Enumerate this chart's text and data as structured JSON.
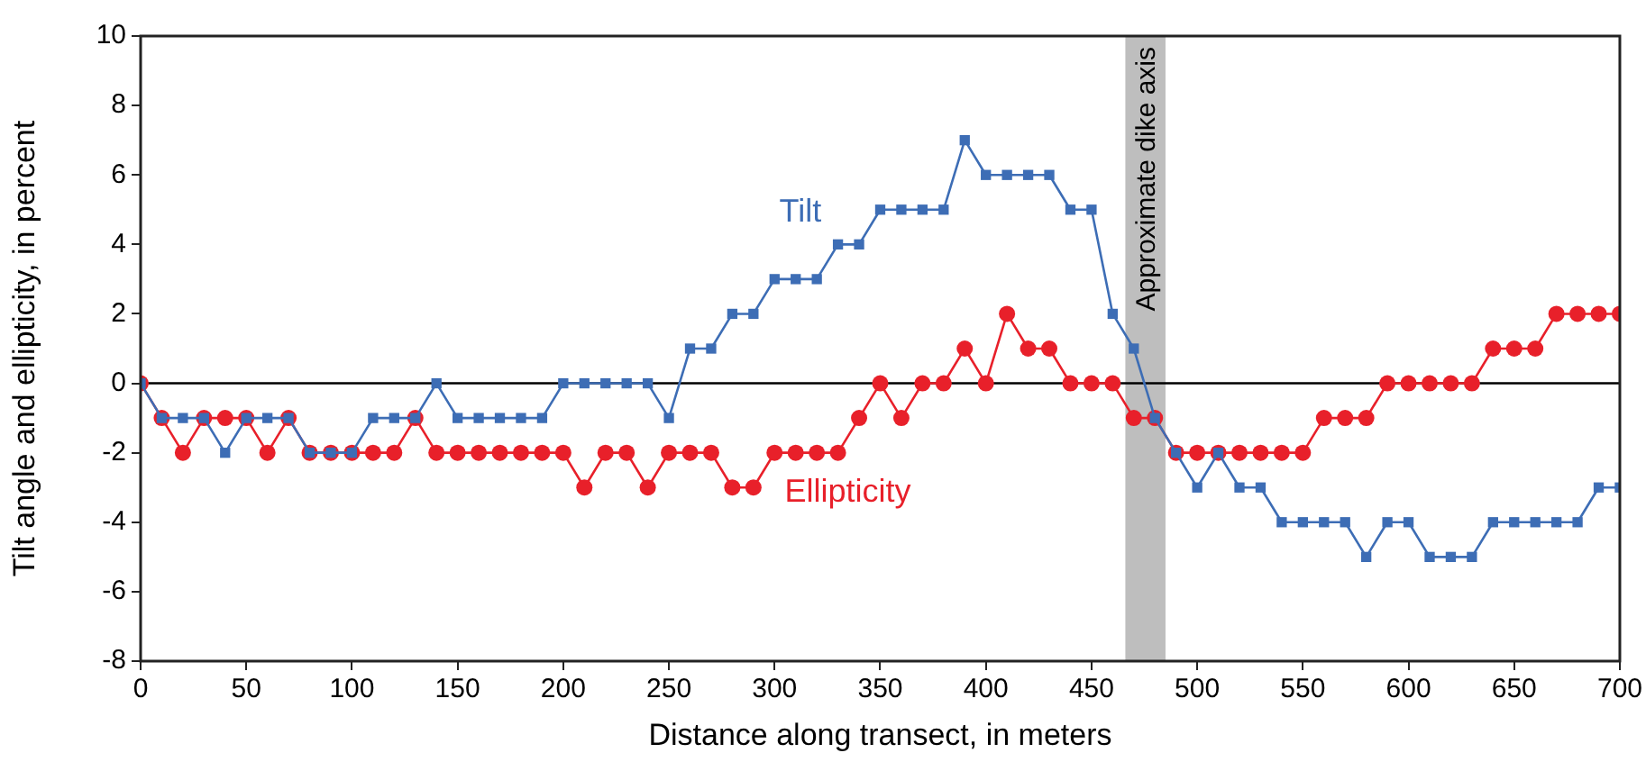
{
  "chart_data": {
    "type": "line",
    "xlabel": "Distance along transect, in meters",
    "ylabel": "Tilt angle and ellipticity, in percent",
    "x": [
      0,
      10,
      20,
      30,
      40,
      50,
      60,
      70,
      80,
      90,
      100,
      110,
      120,
      130,
      140,
      150,
      160,
      170,
      180,
      190,
      200,
      210,
      220,
      230,
      240,
      250,
      260,
      270,
      280,
      290,
      300,
      310,
      320,
      330,
      340,
      350,
      360,
      370,
      380,
      390,
      400,
      410,
      420,
      430,
      440,
      450,
      460,
      470,
      480,
      490,
      500,
      510,
      520,
      530,
      540,
      550,
      560,
      570,
      580,
      590,
      600,
      610,
      620,
      630,
      640,
      650,
      660,
      670,
      680,
      690,
      700
    ],
    "series": [
      {
        "name": "Tilt",
        "color": "#3d6db5",
        "marker": "square",
        "values": [
          0,
          -1,
          -1,
          -1,
          -2,
          -1,
          -1,
          -1,
          -2,
          -2,
          -2,
          -1,
          -1,
          -1,
          0,
          -1,
          -1,
          -1,
          -1,
          -1,
          0,
          0,
          0,
          0,
          0,
          -1,
          1,
          1,
          2,
          2,
          3,
          3,
          3,
          4,
          4,
          5,
          5,
          5,
          5,
          7,
          6,
          6,
          6,
          6,
          5,
          5,
          2,
          1,
          -1,
          -2,
          -3,
          -2,
          -3,
          -3,
          -4,
          -4,
          -4,
          -4,
          -5,
          -4,
          -4,
          -5,
          -5,
          -5,
          -4,
          -4,
          -4,
          -4,
          -4,
          -3,
          -3
        ]
      },
      {
        "name": "Ellipticity",
        "color": "#e8202a",
        "marker": "circle",
        "values": [
          0,
          -1,
          -2,
          -1,
          -1,
          -1,
          -2,
          -1,
          -2,
          -2,
          -2,
          -2,
          -2,
          -1,
          -2,
          -2,
          -2,
          -2,
          -2,
          -2,
          -2,
          -3,
          -2,
          -2,
          -3,
          -2,
          -2,
          -2,
          -3,
          -3,
          -2,
          -2,
          -2,
          -2,
          -1,
          0,
          -1,
          0,
          0,
          1,
          0,
          2,
          1,
          1,
          0,
          0,
          0,
          -1,
          -1,
          -2,
          -2,
          -2,
          -2,
          -2,
          -2,
          -2,
          -1,
          -1,
          -1,
          0,
          0,
          0,
          0,
          0,
          1,
          1,
          1,
          2,
          2,
          2,
          2
        ]
      }
    ],
    "xlim": [
      0,
      700
    ],
    "xticks": [
      0,
      50,
      100,
      150,
      200,
      250,
      300,
      350,
      400,
      450,
      500,
      550,
      600,
      650,
      700
    ],
    "ylim": [
      -8,
      10
    ],
    "yticks": [
      -8,
      -6,
      -4,
      -2,
      0,
      2,
      4,
      6,
      8,
      10
    ],
    "ref_lines": [
      {
        "axis": "y",
        "value": 0,
        "color": "#000000"
      }
    ],
    "bands": [
      {
        "axis": "x",
        "from": 466,
        "to": 485,
        "label": "Approximate dike axis",
        "color": "#bebebe"
      }
    ],
    "grid": false,
    "legend": false,
    "line_style": "solid"
  }
}
